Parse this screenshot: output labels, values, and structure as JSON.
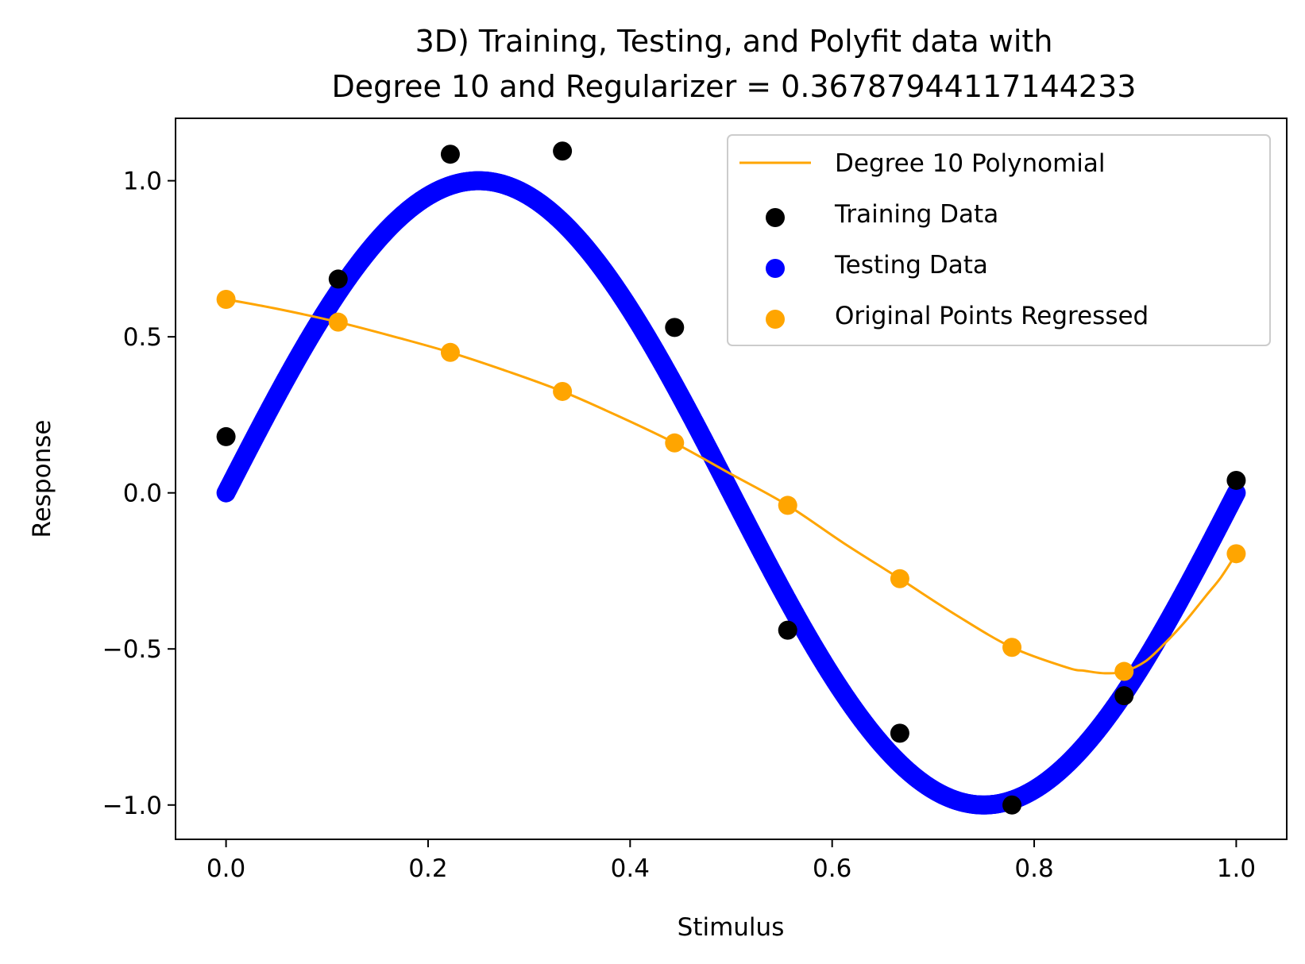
{
  "chart_data": {
    "type": "scatter",
    "title": "3D) Training, Testing, and Polyfit data with",
    "subtitle": "Degree 10 and Regularizer = 0.36787944117144233",
    "xlabel": "Stimulus",
    "ylabel": "Response",
    "xlim": [
      -0.05,
      1.05
    ],
    "ylim": [
      -1.11,
      1.2
    ],
    "xticks": [
      0.0,
      0.2,
      0.4,
      0.6,
      0.8,
      1.0
    ],
    "xtick_labels": [
      "0.0",
      "0.2",
      "0.4",
      "0.6",
      "0.8",
      "1.0"
    ],
    "yticks": [
      -1.0,
      -0.5,
      0.0,
      0.5,
      1.0
    ],
    "ytick_labels": [
      "−1.0",
      "−0.5",
      "0.0",
      "0.5",
      "1.0"
    ],
    "grid": false,
    "legend_position": "top-right",
    "series": [
      {
        "name": "Degree 10 Polynomial",
        "kind": "line",
        "color": "#ffa500",
        "x": [
          0.0,
          0.05,
          0.111,
          0.167,
          0.222,
          0.278,
          0.333,
          0.389,
          0.444,
          0.5,
          0.556,
          0.611,
          0.667,
          0.722,
          0.778,
          0.833,
          0.85,
          0.87,
          0.889,
          0.91,
          0.93,
          0.95,
          0.97,
          0.985,
          1.0
        ],
        "y": [
          0.62,
          0.59,
          0.547,
          0.5,
          0.45,
          0.39,
          0.325,
          0.245,
          0.16,
          0.06,
          -0.04,
          -0.16,
          -0.275,
          -0.39,
          -0.495,
          -0.56,
          -0.57,
          -0.578,
          -0.572,
          -0.54,
          -0.48,
          -0.41,
          -0.33,
          -0.27,
          -0.195
        ]
      },
      {
        "name": "Training Data",
        "kind": "scatter",
        "color": "#000000",
        "x": [
          0.0,
          0.111,
          0.222,
          0.333,
          0.444,
          0.556,
          0.667,
          0.778,
          0.889,
          1.0
        ],
        "y": [
          0.18,
          0.685,
          1.085,
          1.095,
          0.53,
          -0.44,
          -0.77,
          -1.0,
          -0.65,
          0.04
        ]
      },
      {
        "name": "Testing Data",
        "kind": "scatter",
        "color": "#0000ff",
        "function": "sin(2*pi*x)",
        "x_range": [
          0.0,
          1.0
        ],
        "n_points": 1000
      },
      {
        "name": "Original Points Regressed",
        "kind": "scatter",
        "color": "#ffa500",
        "x": [
          0.0,
          0.111,
          0.222,
          0.333,
          0.444,
          0.556,
          0.667,
          0.778,
          0.889,
          1.0
        ],
        "y": [
          0.62,
          0.547,
          0.45,
          0.325,
          0.16,
          -0.04,
          -0.275,
          -0.495,
          -0.572,
          -0.195
        ]
      }
    ]
  }
}
